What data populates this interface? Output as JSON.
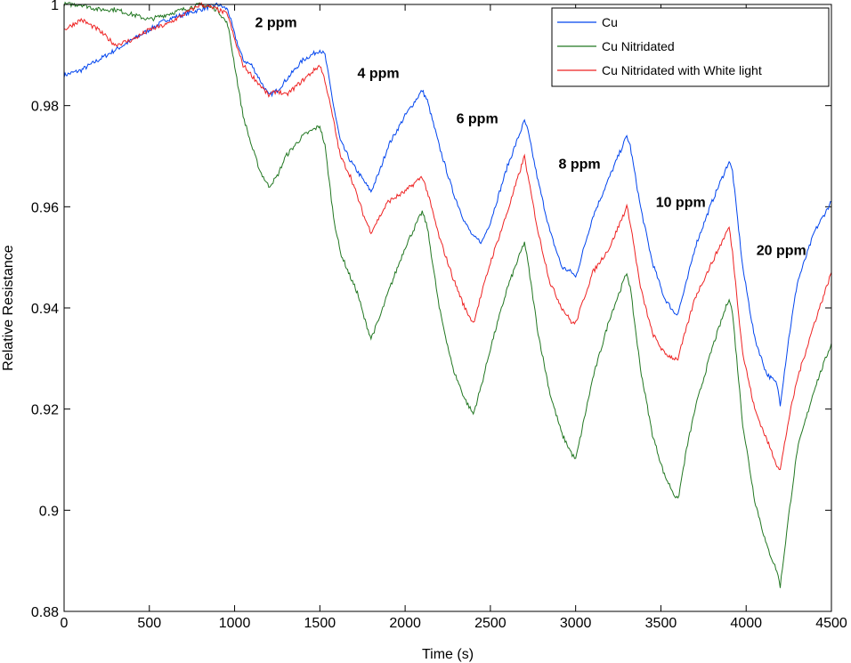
{
  "chart_data": {
    "type": "line",
    "title": "",
    "xlabel": "Time (s)",
    "ylabel": "Relative Resistance",
    "xlim": [
      0,
      4500
    ],
    "ylim": [
      0.88,
      1.0
    ],
    "xticks": [
      0,
      500,
      1000,
      1500,
      2000,
      2500,
      3000,
      3500,
      4000,
      4500
    ],
    "xtick_labels": [
      "0",
      "500",
      "1000",
      "1500",
      "2000",
      "2500",
      "3000",
      "3500",
      "4000",
      "4500"
    ],
    "yticks": [
      0.88,
      0.9,
      0.92,
      0.94,
      0.96,
      0.98,
      1.0
    ],
    "ytick_labels": [
      "0.88",
      "0.9",
      "0.92",
      "0.94",
      "0.96",
      "0.98",
      "1"
    ],
    "legend_position": "top-right",
    "series": [
      {
        "name": "Cu",
        "color": "#0044ee",
        "x": [
          0,
          100,
          200,
          300,
          400,
          500,
          600,
          700,
          800,
          900,
          960,
          1000,
          1050,
          1100,
          1150,
          1200,
          1250,
          1300,
          1400,
          1500,
          1530,
          1580,
          1620,
          1680,
          1720,
          1760,
          1800,
          1850,
          1900,
          2000,
          2100,
          2130,
          2200,
          2280,
          2350,
          2400,
          2450,
          2500,
          2600,
          2700,
          2720,
          2780,
          2850,
          2920,
          2980,
          3000,
          3050,
          3100,
          3200,
          3300,
          3320,
          3380,
          3450,
          3520,
          3580,
          3600,
          3650,
          3700,
          3800,
          3900,
          3920,
          3980,
          4050,
          4120,
          4180,
          4200,
          4250,
          4300,
          4400,
          4500
        ],
        "y": [
          0.986,
          0.987,
          0.989,
          0.991,
          0.993,
          0.995,
          0.997,
          0.998,
          0.999,
          1.0,
          0.999,
          0.994,
          0.989,
          0.988,
          0.985,
          0.982,
          0.983,
          0.985,
          0.989,
          0.991,
          0.99,
          0.98,
          0.973,
          0.969,
          0.967,
          0.965,
          0.963,
          0.967,
          0.972,
          0.978,
          0.983,
          0.981,
          0.972,
          0.963,
          0.957,
          0.954,
          0.953,
          0.957,
          0.968,
          0.977,
          0.975,
          0.965,
          0.955,
          0.948,
          0.947,
          0.946,
          0.952,
          0.958,
          0.966,
          0.974,
          0.972,
          0.96,
          0.949,
          0.942,
          0.939,
          0.939,
          0.945,
          0.952,
          0.961,
          0.969,
          0.967,
          0.948,
          0.934,
          0.927,
          0.925,
          0.921,
          0.934,
          0.945,
          0.955,
          0.961
        ]
      },
      {
        "name": "Cu Nitridated",
        "color": "#227722",
        "x": [
          0,
          100,
          200,
          300,
          400,
          500,
          600,
          700,
          800,
          900,
          960,
          1000,
          1050,
          1100,
          1150,
          1200,
          1250,
          1300,
          1400,
          1500,
          1530,
          1580,
          1620,
          1680,
          1720,
          1760,
          1800,
          1850,
          1900,
          2000,
          2100,
          2130,
          2200,
          2280,
          2350,
          2400,
          2450,
          2500,
          2600,
          2700,
          2720,
          2780,
          2850,
          2920,
          2980,
          3000,
          3050,
          3100,
          3200,
          3300,
          3320,
          3380,
          3450,
          3520,
          3580,
          3600,
          3650,
          3700,
          3800,
          3900,
          3920,
          3980,
          4050,
          4120,
          4180,
          4200,
          4250,
          4300,
          4400,
          4500
        ],
        "y": [
          1.0,
          1.0,
          0.999,
          0.999,
          0.998,
          0.997,
          0.998,
          0.999,
          1.0,
          0.999,
          0.996,
          0.988,
          0.978,
          0.972,
          0.967,
          0.964,
          0.966,
          0.97,
          0.974,
          0.976,
          0.972,
          0.958,
          0.951,
          0.946,
          0.943,
          0.938,
          0.934,
          0.938,
          0.943,
          0.952,
          0.959,
          0.956,
          0.94,
          0.928,
          0.922,
          0.919,
          0.925,
          0.932,
          0.944,
          0.953,
          0.949,
          0.935,
          0.923,
          0.915,
          0.911,
          0.91,
          0.918,
          0.926,
          0.938,
          0.947,
          0.944,
          0.928,
          0.915,
          0.907,
          0.903,
          0.902,
          0.912,
          0.92,
          0.932,
          0.942,
          0.939,
          0.917,
          0.902,
          0.893,
          0.888,
          0.885,
          0.899,
          0.912,
          0.924,
          0.933
        ]
      },
      {
        "name": "Cu Nitridated with White light",
        "color": "#ee2222",
        "x": [
          0,
          100,
          200,
          300,
          400,
          500,
          600,
          700,
          800,
          900,
          960,
          1000,
          1050,
          1100,
          1150,
          1200,
          1250,
          1300,
          1400,
          1500,
          1530,
          1580,
          1620,
          1680,
          1720,
          1760,
          1800,
          1850,
          1900,
          2000,
          2100,
          2130,
          2200,
          2280,
          2350,
          2400,
          2450,
          2500,
          2600,
          2700,
          2720,
          2780,
          2850,
          2920,
          2980,
          3000,
          3050,
          3100,
          3200,
          3300,
          3320,
          3380,
          3450,
          3520,
          3580,
          3600,
          3650,
          3700,
          3800,
          3900,
          3920,
          3980,
          4050,
          4120,
          4180,
          4200,
          4250,
          4300,
          4400,
          4500
        ],
        "y": [
          0.995,
          0.997,
          0.995,
          0.992,
          0.993,
          0.995,
          0.996,
          0.998,
          1.0,
          0.999,
          0.998,
          0.993,
          0.988,
          0.986,
          0.984,
          0.982,
          0.983,
          0.982,
          0.985,
          0.988,
          0.985,
          0.977,
          0.97,
          0.966,
          0.962,
          0.958,
          0.955,
          0.958,
          0.961,
          0.963,
          0.966,
          0.963,
          0.954,
          0.946,
          0.94,
          0.937,
          0.943,
          0.949,
          0.959,
          0.97,
          0.966,
          0.955,
          0.945,
          0.94,
          0.937,
          0.937,
          0.942,
          0.947,
          0.952,
          0.96,
          0.957,
          0.944,
          0.935,
          0.931,
          0.93,
          0.93,
          0.936,
          0.942,
          0.949,
          0.956,
          0.951,
          0.931,
          0.92,
          0.914,
          0.909,
          0.908,
          0.918,
          0.926,
          0.937,
          0.947
        ]
      }
    ],
    "annotations": [
      {
        "text": "2 ppm",
        "x": 1120,
        "y": 0.9955
      },
      {
        "text": "4 ppm",
        "x": 1720,
        "y": 0.9855
      },
      {
        "text": "6 ppm",
        "x": 2300,
        "y": 0.9765
      },
      {
        "text": "8 ppm",
        "x": 2900,
        "y": 0.9675
      },
      {
        "text": "10 ppm",
        "x": 3470,
        "y": 0.96
      },
      {
        "text": "20 ppm",
        "x": 4060,
        "y": 0.9505
      }
    ]
  }
}
